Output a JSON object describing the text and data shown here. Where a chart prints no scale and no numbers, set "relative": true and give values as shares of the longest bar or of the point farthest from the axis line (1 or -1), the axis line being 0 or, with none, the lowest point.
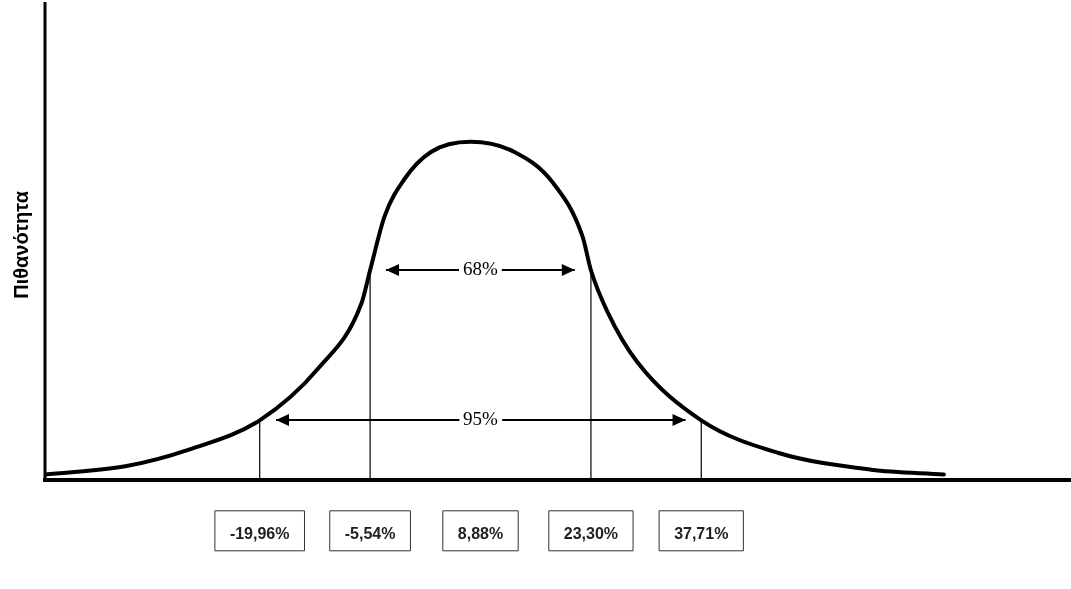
{
  "chart_data": {
    "type": "line",
    "ylabel": "Πιθανότητα",
    "relative": true,
    "x": [
      -48.0,
      -37.5,
      -29.1,
      -19.96,
      -12.3,
      -6.7,
      -5.54,
      -3.64,
      -1.05,
      2.41,
      7.59,
      13.3,
      18.3,
      22.2,
      23.3,
      25.4,
      29.3,
      37.71,
      47.7,
      59.9,
      69.4
    ],
    "series": [
      {
        "color": "#000000",
        "values": [
          0.016,
          0.04,
          0.09,
          0.176,
          0.33,
          0.52,
          0.62,
          0.78,
          0.89,
          0.97,
          1.0,
          0.97,
          0.88,
          0.72,
          0.62,
          0.5,
          0.35,
          0.176,
          0.08,
          0.03,
          0.016
        ]
      }
    ],
    "xlim": [
      -48,
      86
    ],
    "xticks": [
      {
        "value": -19.96,
        "label": "-19,96%"
      },
      {
        "value": -5.54,
        "label": "-5,54%"
      },
      {
        "value": 8.88,
        "label": "8,88%"
      },
      {
        "value": 23.3,
        "label": "23,30%"
      },
      {
        "value": 37.71,
        "label": "37,71%"
      }
    ],
    "ref_lines": [
      {
        "axis": "x",
        "value": -19.96
      },
      {
        "axis": "x",
        "value": -5.54
      },
      {
        "axis": "x",
        "value": 23.3
      },
      {
        "axis": "x",
        "value": 37.71
      }
    ],
    "annotations": [
      "68%",
      "95%"
    ],
    "grid": false,
    "legend": false,
    "marker": "none",
    "line_style": "solid"
  }
}
